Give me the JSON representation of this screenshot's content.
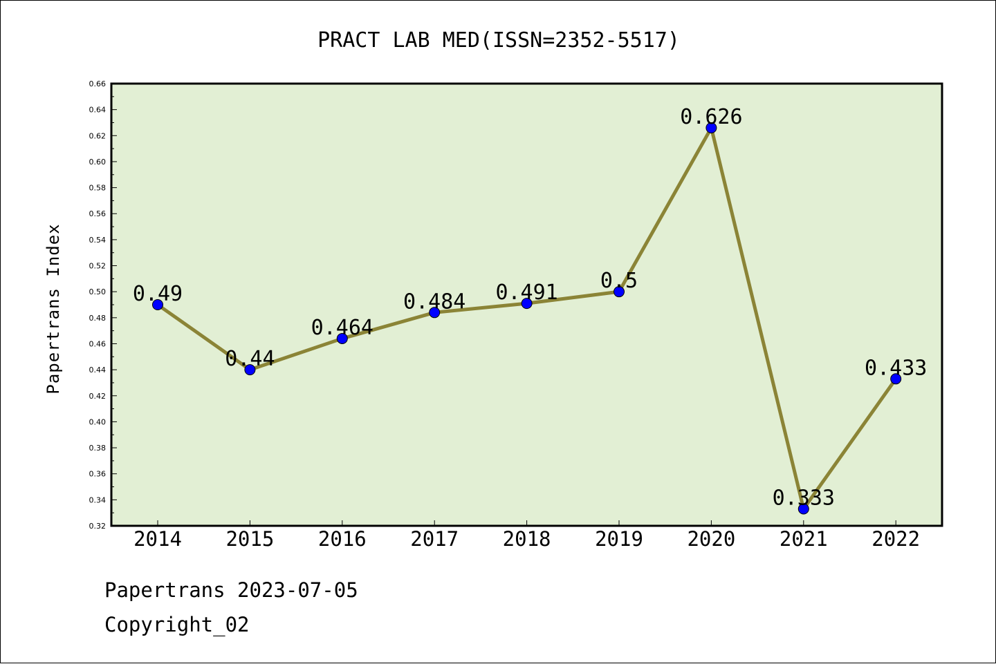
{
  "chart_data": {
    "type": "line",
    "title": "PRACT LAB MED(ISSN=2352-5517)",
    "xlabel": "",
    "ylabel": "Papertrans Index",
    "categories": [
      "2014",
      "2015",
      "2016",
      "2017",
      "2018",
      "2019",
      "2020",
      "2021",
      "2022"
    ],
    "values": [
      0.49,
      0.44,
      0.464,
      0.484,
      0.491,
      0.5,
      0.626,
      0.333,
      0.433
    ],
    "data_labels": [
      "0.49",
      "0.44",
      "0.464",
      "0.484",
      "0.491",
      "0.5",
      "0.626",
      "0.333",
      "0.433"
    ],
    "ylim": [
      0.32,
      0.66
    ],
    "yticks": [
      "0.32",
      "0.34",
      "0.36",
      "0.38",
      "0.40",
      "0.42",
      "0.44",
      "0.46",
      "0.48",
      "0.50",
      "0.52",
      "0.54",
      "0.56",
      "0.58",
      "0.60",
      "0.62",
      "0.64",
      "0.66"
    ],
    "grid": false,
    "colors": {
      "plot_background": "#e2efd4",
      "line": "#8b8436",
      "marker": "#0000ff"
    }
  },
  "footer": {
    "source": "Papertrans 2023-07-05",
    "copyright": "Copyright_02"
  }
}
